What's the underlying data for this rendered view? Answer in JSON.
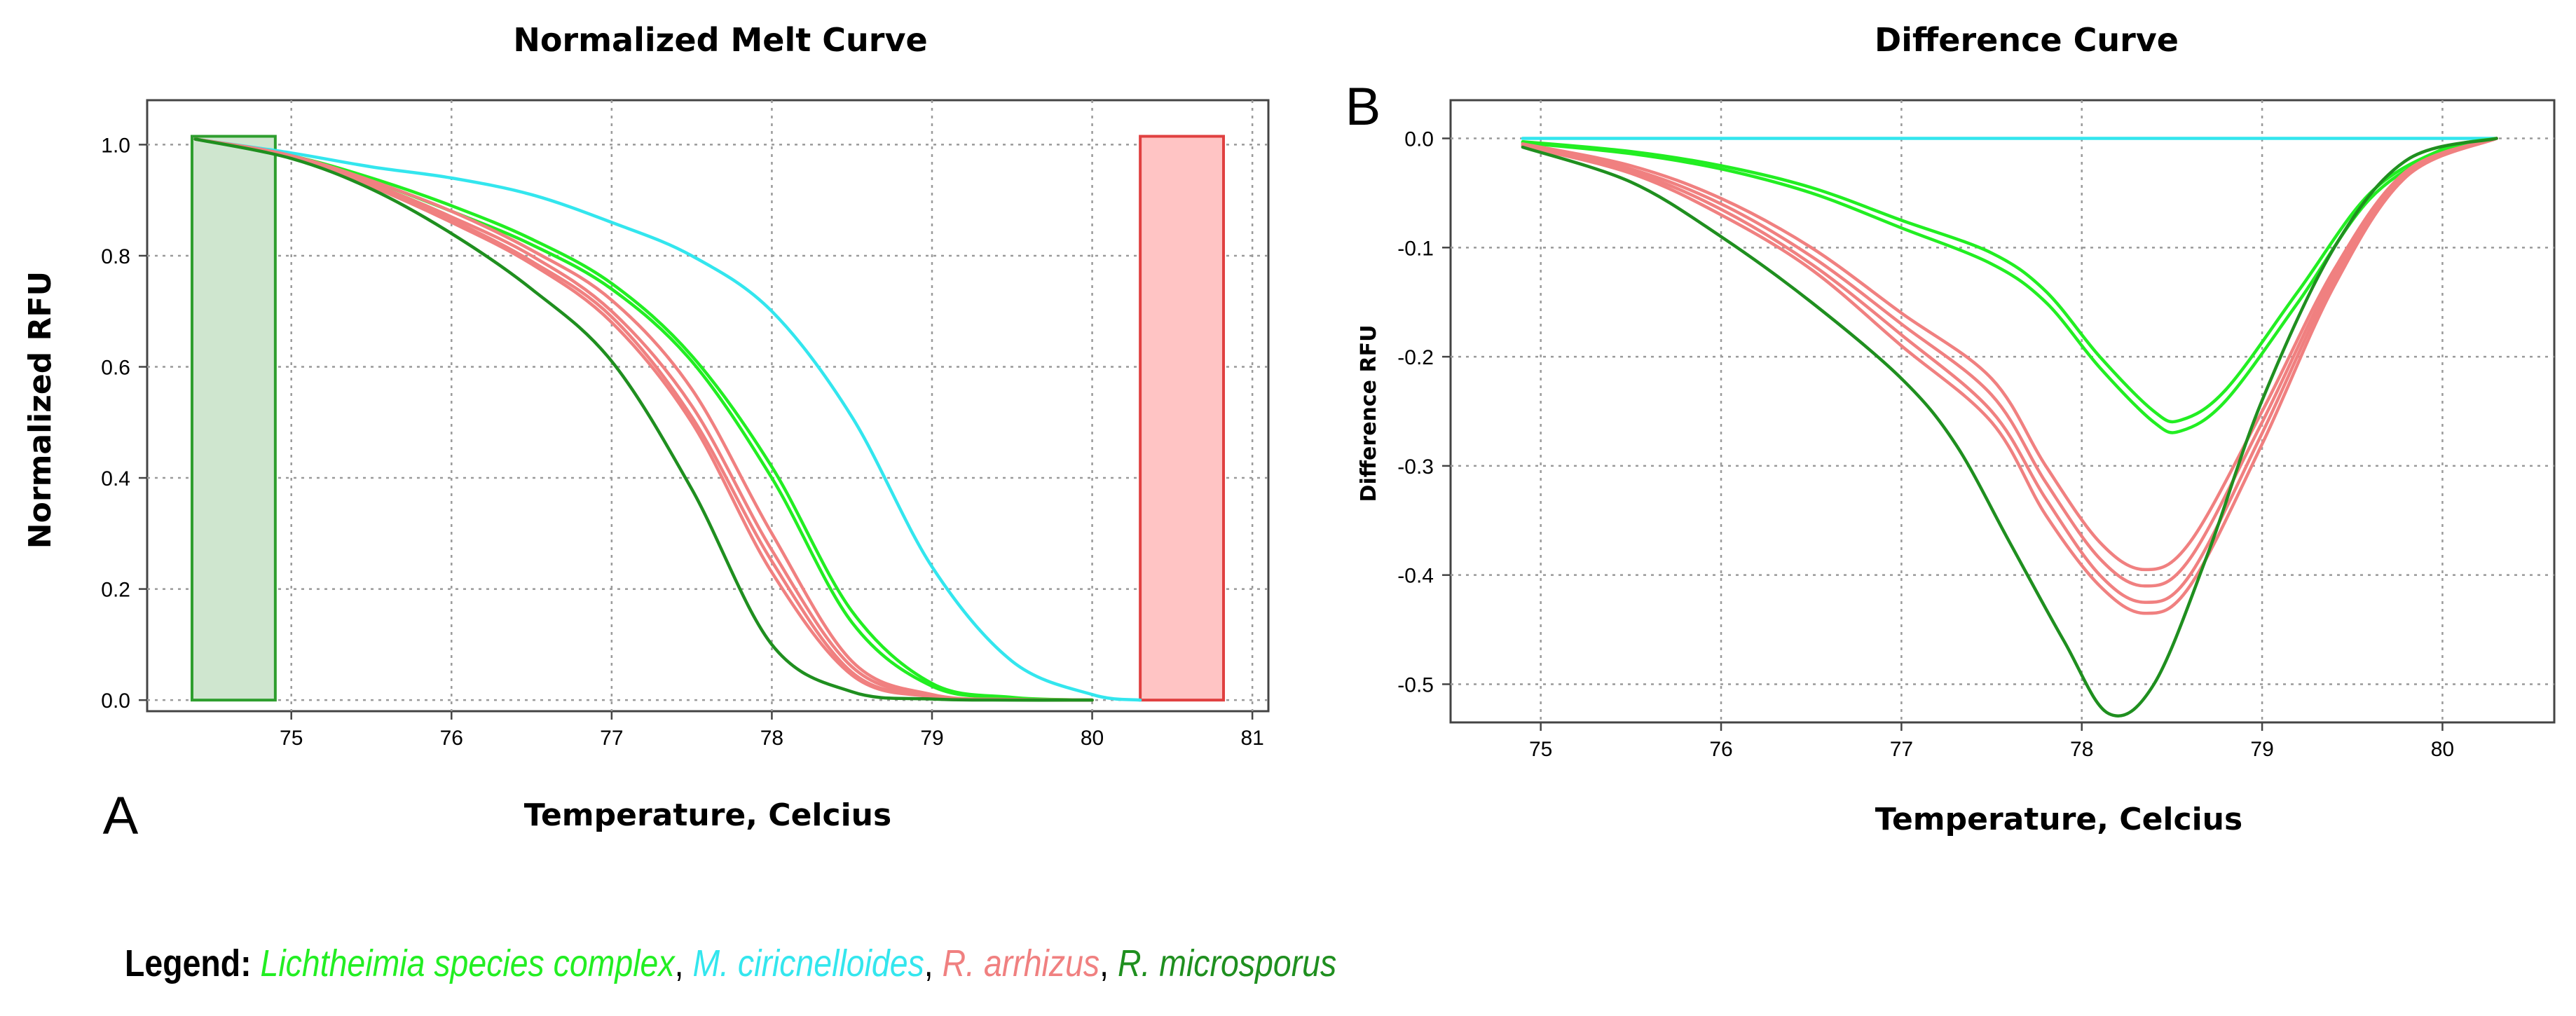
{
  "legend": {
    "label": "Legend:",
    "separator": ",",
    "entries": [
      {
        "name": "Lichtheimia species complex",
        "color": "#22ee22"
      },
      {
        "name": "M. ciricnelloides",
        "color": "#33e6ee"
      },
      {
        "name": "R. arrhizus",
        "color": "#f08080"
      },
      {
        "name": "R. microsporus",
        "color": "#1f8f1f"
      }
    ]
  },
  "chart_data": [
    {
      "panel_letter": "A",
      "type": "line",
      "title": "Normalized Melt Curve",
      "xlabel": "Temperature, Celcius",
      "ylabel": "Normalized RFU",
      "xlim": [
        74.1,
        81.1
      ],
      "ylim": [
        -0.02,
        1.08
      ],
      "xticks": [
        75,
        76,
        77,
        78,
        79,
        80,
        81
      ],
      "yticks": [
        0.0,
        0.2,
        0.4,
        0.6,
        0.8,
        1.0
      ],
      "ytick_labels": [
        "0.0",
        "0.2",
        "0.4",
        "0.6",
        "0.8",
        "1.0"
      ],
      "grid": true,
      "regions": [
        {
          "x": [
            74.38,
            74.9
          ],
          "y": [
            0.0,
            1.015
          ],
          "fill": "#cfe6cf",
          "edge": "#2e9e2e"
        },
        {
          "x": [
            80.3,
            80.82
          ],
          "y": [
            0.0,
            1.015
          ],
          "fill": "#ffc4c4",
          "edge": "#e04040"
        }
      ],
      "series": [
        {
          "name": "M. ciricnelloides",
          "color": "#33e6ee",
          "x": [
            74.4,
            75,
            75.5,
            76,
            76.5,
            77,
            77.5,
            78,
            78.5,
            79,
            79.5,
            80,
            80.3
          ],
          "values": [
            1.01,
            0.985,
            0.96,
            0.94,
            0.91,
            0.86,
            0.8,
            0.7,
            0.51,
            0.24,
            0.07,
            0.01,
            0.0
          ]
        },
        {
          "name": "Lichtheimia species complex",
          "color": "#22ee22",
          "x": [
            74.4,
            75,
            75.5,
            76,
            76.5,
            77,
            77.5,
            78,
            78.5,
            79,
            79.5,
            80
          ],
          "values": [
            1.01,
            0.98,
            0.94,
            0.89,
            0.83,
            0.75,
            0.62,
            0.42,
            0.16,
            0.03,
            0.005,
            0.0
          ]
        },
        {
          "name": "Lichtheimia species complex",
          "color": "#22ee22",
          "x": [
            74.4,
            75,
            75.5,
            76,
            76.5,
            77,
            77.5,
            78,
            78.5,
            79,
            79.5,
            80
          ],
          "values": [
            1.01,
            0.98,
            0.935,
            0.88,
            0.82,
            0.74,
            0.61,
            0.4,
            0.14,
            0.025,
            0.004,
            0.0
          ]
        },
        {
          "name": "R. arrhizus",
          "color": "#f08080",
          "x": [
            74.4,
            75,
            75.5,
            76,
            76.5,
            77,
            77.5,
            78,
            78.5,
            79,
            79.5,
            80
          ],
          "values": [
            1.01,
            0.98,
            0.935,
            0.88,
            0.81,
            0.72,
            0.56,
            0.3,
            0.07,
            0.01,
            0.001,
            0.0
          ]
        },
        {
          "name": "R. arrhizus",
          "color": "#f08080",
          "x": [
            74.4,
            75,
            75.5,
            76,
            76.5,
            77,
            77.5,
            78,
            78.5,
            79,
            79.5,
            80
          ],
          "values": [
            1.01,
            0.98,
            0.93,
            0.87,
            0.8,
            0.7,
            0.53,
            0.27,
            0.06,
            0.008,
            0.001,
            0.0
          ]
        },
        {
          "name": "R. arrhizus",
          "color": "#f08080",
          "x": [
            74.4,
            75,
            75.5,
            76,
            76.5,
            77,
            77.5,
            78,
            78.5,
            79,
            79.5,
            80
          ],
          "values": [
            1.01,
            0.98,
            0.93,
            0.865,
            0.79,
            0.69,
            0.51,
            0.25,
            0.05,
            0.007,
            0.001,
            0.0
          ]
        },
        {
          "name": "R. arrhizus",
          "color": "#f08080",
          "x": [
            74.4,
            75,
            75.5,
            76,
            76.5,
            77,
            77.5,
            78,
            78.5,
            79,
            79.5,
            80
          ],
          "values": [
            1.01,
            0.98,
            0.925,
            0.86,
            0.785,
            0.68,
            0.5,
            0.23,
            0.045,
            0.006,
            0.001,
            0.0
          ]
        },
        {
          "name": "R. microsporus",
          "color": "#1f8f1f",
          "x": [
            74.4,
            75,
            75.5,
            76,
            76.5,
            77,
            77.5,
            78,
            78.5,
            79,
            79.5,
            80
          ],
          "values": [
            1.01,
            0.975,
            0.92,
            0.84,
            0.74,
            0.61,
            0.38,
            0.1,
            0.015,
            0.002,
            0.0,
            0.0
          ]
        }
      ]
    },
    {
      "panel_letter": "B",
      "type": "line",
      "title": "Difference Curve",
      "xlabel": "Temperature, Celcius",
      "ylabel": "Difference RFU",
      "xlim": [
        74.5,
        80.62
      ],
      "ylim": [
        -0.535,
        0.035
      ],
      "xticks": [
        75,
        76,
        77,
        78,
        79,
        80
      ],
      "yticks": [
        0.0,
        -0.1,
        -0.2,
        -0.3,
        -0.4,
        -0.5
      ],
      "ytick_labels": [
        "0.0",
        "-0.1",
        "-0.2",
        "-0.3",
        "-0.4",
        "-0.5"
      ],
      "grid": true,
      "series": [
        {
          "name": "M. ciricnelloides",
          "color": "#33e6ee",
          "x": [
            74.9,
            76,
            77,
            78,
            79,
            80.3
          ],
          "values": [
            0.0,
            0.0,
            0.0,
            0.0,
            0.0,
            0.0
          ]
        },
        {
          "name": "Lichtheimia species complex",
          "color": "#22ee22",
          "x": [
            74.9,
            75.5,
            76,
            76.5,
            77,
            77.5,
            77.8,
            78.1,
            78.4,
            78.55,
            78.8,
            79.2,
            79.6,
            80,
            80.3
          ],
          "values": [
            -0.003,
            -0.012,
            -0.025,
            -0.045,
            -0.075,
            -0.105,
            -0.14,
            -0.2,
            -0.25,
            -0.258,
            -0.23,
            -0.14,
            -0.05,
            -0.01,
            0.0
          ]
        },
        {
          "name": "Lichtheimia species complex",
          "color": "#22ee22",
          "x": [
            74.9,
            75.5,
            76,
            76.5,
            77,
            77.5,
            77.8,
            78.1,
            78.4,
            78.55,
            78.8,
            79.2,
            79.6,
            80,
            80.3
          ],
          "values": [
            -0.004,
            -0.014,
            -0.028,
            -0.05,
            -0.082,
            -0.115,
            -0.15,
            -0.21,
            -0.26,
            -0.268,
            -0.24,
            -0.15,
            -0.055,
            -0.012,
            0.0
          ]
        },
        {
          "name": "R. arrhizus",
          "color": "#f08080",
          "x": [
            74.9,
            75.5,
            76,
            76.5,
            77,
            77.5,
            77.8,
            78.1,
            78.35,
            78.6,
            79,
            79.4,
            79.8,
            80.3
          ],
          "values": [
            -0.005,
            -0.025,
            -0.055,
            -0.1,
            -0.16,
            -0.22,
            -0.3,
            -0.37,
            -0.395,
            -0.37,
            -0.25,
            -0.12,
            -0.03,
            0.0
          ]
        },
        {
          "name": "R. arrhizus",
          "color": "#f08080",
          "x": [
            74.9,
            75.5,
            76,
            76.5,
            77,
            77.5,
            77.8,
            78.1,
            78.35,
            78.6,
            79,
            79.4,
            79.8,
            80.3
          ],
          "values": [
            -0.006,
            -0.028,
            -0.06,
            -0.108,
            -0.17,
            -0.235,
            -0.315,
            -0.385,
            -0.41,
            -0.385,
            -0.26,
            -0.125,
            -0.032,
            0.0
          ]
        },
        {
          "name": "R. arrhizus",
          "color": "#f08080",
          "x": [
            74.9,
            75.5,
            76,
            76.5,
            77,
            77.5,
            77.8,
            78.1,
            78.35,
            78.6,
            79,
            79.4,
            79.8,
            80.3
          ],
          "values": [
            -0.006,
            -0.03,
            -0.065,
            -0.115,
            -0.18,
            -0.25,
            -0.33,
            -0.4,
            -0.425,
            -0.4,
            -0.27,
            -0.13,
            -0.034,
            0.0
          ]
        },
        {
          "name": "R. arrhizus",
          "color": "#f08080",
          "x": [
            74.9,
            75.5,
            76,
            76.5,
            77,
            77.5,
            77.8,
            78.1,
            78.35,
            78.6,
            79,
            79.4,
            79.8,
            80.3
          ],
          "values": [
            -0.007,
            -0.032,
            -0.07,
            -0.12,
            -0.19,
            -0.26,
            -0.345,
            -0.41,
            -0.435,
            -0.41,
            -0.28,
            -0.135,
            -0.035,
            0.0
          ]
        },
        {
          "name": "R. microsporus",
          "color": "#1f8f1f",
          "x": [
            74.9,
            75.5,
            76,
            76.5,
            77,
            77.3,
            77.6,
            77.9,
            78.15,
            78.4,
            78.7,
            79,
            79.4,
            79.8,
            80.3
          ],
          "values": [
            -0.008,
            -0.04,
            -0.09,
            -0.15,
            -0.22,
            -0.28,
            -0.37,
            -0.46,
            -0.527,
            -0.5,
            -0.38,
            -0.24,
            -0.1,
            -0.02,
            0.0
          ]
        }
      ]
    }
  ]
}
